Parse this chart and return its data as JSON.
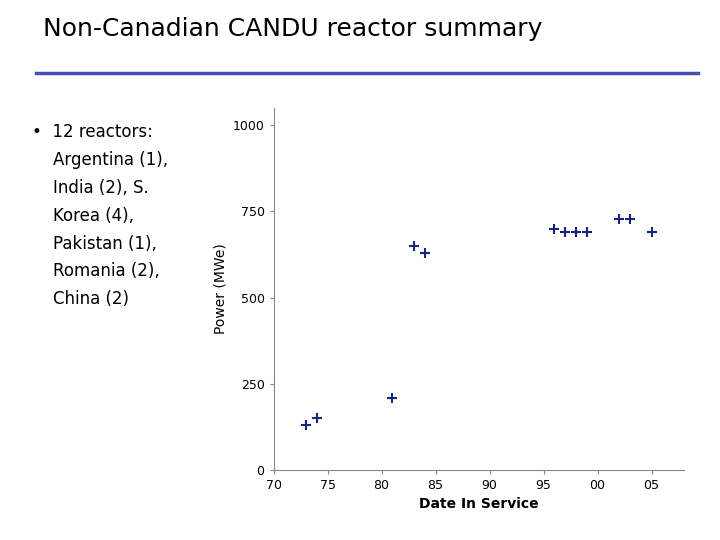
{
  "title": "Non-Canadian CANDU reactor summary",
  "bullet_lines": [
    "12 reactors:",
    "Argentina (1),",
    "India (2), S.",
    "Korea (4),",
    "Pakistan (1),",
    "Romania (2),",
    "China (2)"
  ],
  "scatter_x": [
    73,
    74,
    81,
    83,
    84,
    96,
    97,
    98,
    99,
    102,
    103,
    105
  ],
  "scatter_y": [
    130,
    150,
    207,
    650,
    630,
    700,
    690,
    690,
    690,
    728,
    728,
    690
  ],
  "xlabel": "Date In Service",
  "ylabel": "Power (MWe)",
  "xlim": [
    70,
    108
  ],
  "ylim": [
    0,
    1050
  ],
  "xtick_vals": [
    70,
    75,
    80,
    85,
    90,
    95,
    100,
    105
  ],
  "xtick_labels": [
    "70",
    "75",
    "80",
    "85",
    "90",
    "95",
    "00",
    "05"
  ],
  "yticks": [
    0,
    250,
    500,
    750,
    1000
  ],
  "marker_color": "#1a237e",
  "marker_size": 55,
  "title_fontsize": 18,
  "axis_label_fontsize": 10,
  "tick_fontsize": 9,
  "bg_color": "#ffffff",
  "separator_color": "#3f51b5",
  "bullet_fontsize": 12
}
